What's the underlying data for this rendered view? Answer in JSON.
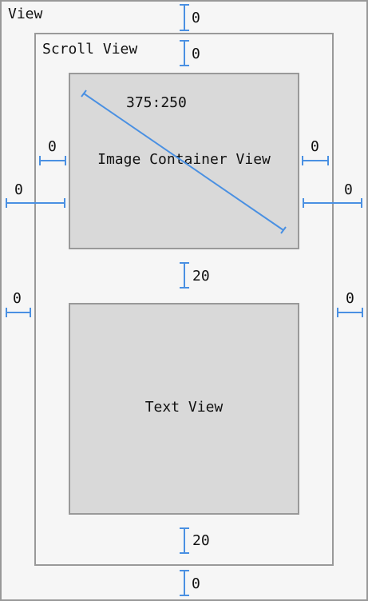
{
  "colors": {
    "accent": "#4a90e2",
    "box_fill": "#d9d9d9",
    "border": "#999999",
    "background": "#f6f6f6"
  },
  "view": {
    "label": "View"
  },
  "scroll_view": {
    "label": "Scroll View"
  },
  "image_container": {
    "label": "Image Container View",
    "aspect_ratio": "375:250"
  },
  "text_view": {
    "label": "Text View"
  },
  "constraints": {
    "view_top": "0",
    "scroll_top": "0",
    "image_leading_inner": "0",
    "image_trailing_inner": "0",
    "image_leading_outer": "0",
    "image_trailing_outer": "0",
    "image_to_text_spacing": "20",
    "scroll_leading": "0",
    "scroll_trailing": "0",
    "text_bottom_spacing": "20",
    "view_bottom": "0"
  }
}
